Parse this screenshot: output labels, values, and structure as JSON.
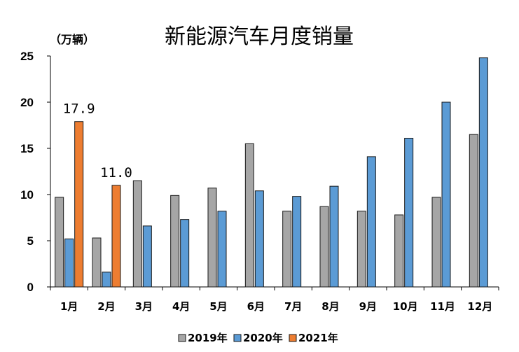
{
  "chart_data": {
    "type": "bar",
    "title": "新能源汽车月度销量",
    "unit_label": "（万辆）",
    "categories": [
      "1月",
      "2月",
      "3月",
      "4月",
      "5月",
      "6月",
      "7月",
      "8月",
      "9月",
      "10月",
      "11月",
      "12月"
    ],
    "ylim": [
      0,
      25
    ],
    "yticks": [
      "0",
      "5",
      "10",
      "15",
      "20",
      "25"
    ],
    "series": [
      {
        "name": "2019年",
        "color": "#a6a6a6",
        "values": [
          9.7,
          5.3,
          11.5,
          9.9,
          10.7,
          15.5,
          8.2,
          8.7,
          8.2,
          7.8,
          9.7,
          16.5
        ]
      },
      {
        "name": "2020年",
        "color": "#5b9bd5",
        "values": [
          5.2,
          1.6,
          6.6,
          7.3,
          8.2,
          10.4,
          9.8,
          10.9,
          14.1,
          16.1,
          20.0,
          24.8
        ]
      },
      {
        "name": "2021年",
        "color": "#ed7d31",
        "values": [
          17.9,
          11.0,
          null,
          null,
          null,
          null,
          null,
          null,
          null,
          null,
          null,
          null
        ]
      }
    ],
    "data_labels": [
      {
        "series": 2,
        "index": 0,
        "text": "17.9"
      },
      {
        "series": 2,
        "index": 1,
        "text": "11.0"
      }
    ],
    "grid": false,
    "legend_position": "bottom"
  }
}
